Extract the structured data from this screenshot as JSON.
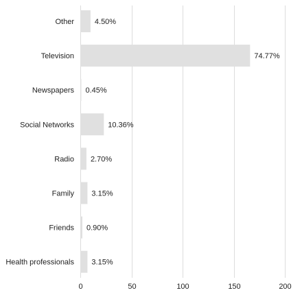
{
  "chart_data": {
    "type": "bar",
    "orientation": "horizontal",
    "categories": [
      "Other",
      "Television",
      "Newspapers",
      "Social Networks",
      "Radio",
      "Family",
      "Friends",
      "Health professionals"
    ],
    "counts": [
      10,
      166,
      1,
      23,
      6,
      7,
      2,
      7
    ],
    "percent_labels": [
      "4.50%",
      "74.77%",
      "0.45%",
      "10.36%",
      "2.70%",
      "3.15%",
      "0.90%",
      "3.15%"
    ],
    "xlim": [
      0,
      200
    ],
    "xticks": [
      0,
      50,
      100,
      150,
      200
    ],
    "grid": true,
    "legend": "none",
    "bar_color": "#e0e0e0",
    "gridline_color": "#dcdcdc",
    "title": "",
    "xlabel": "",
    "ylabel": ""
  }
}
